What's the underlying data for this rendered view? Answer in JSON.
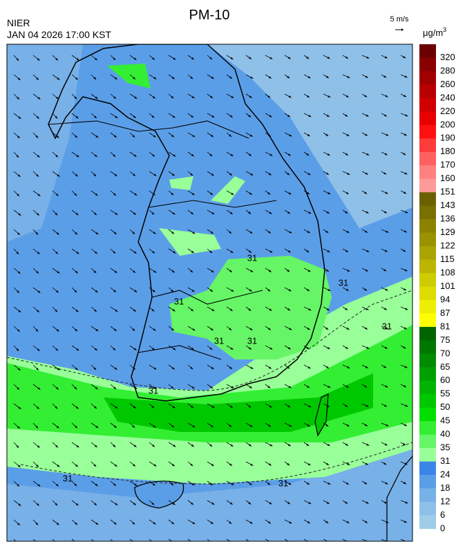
{
  "header": {
    "title": "PM-10",
    "source": "NIER",
    "datetime": "JAN 04 2026 17:00 KST",
    "wind_scale": "5 m/s"
  },
  "legend": {
    "unit": "μg/m",
    "unit_power": "3",
    "labels": [
      "320",
      "280",
      "260",
      "240",
      "220",
      "200",
      "190",
      "180",
      "170",
      "160",
      "151",
      "143",
      "136",
      "129",
      "122",
      "115",
      "108",
      "101",
      "94",
      "87",
      "81",
      "75",
      "70",
      "65",
      "60",
      "55",
      "50",
      "45",
      "40",
      "35",
      "31",
      "24",
      "18",
      "12",
      "6",
      "0"
    ],
    "colors": [
      "#6b0000",
      "#880000",
      "#a00000",
      "#b80000",
      "#d00000",
      "#e80000",
      "#ff1010",
      "#ff3a3a",
      "#ff6060",
      "#ff8080",
      "#ff9a9a",
      "#6b6000",
      "#7a7000",
      "#8a8200",
      "#9a9200",
      "#aaa400",
      "#bbb400",
      "#cccc00",
      "#dddd00",
      "#eeee00",
      "#ffff00",
      "#006400",
      "#007800",
      "#008c00",
      "#00a000",
      "#00b400",
      "#00c800",
      "#00e000",
      "#33ee33",
      "#66f566",
      "#99ff99",
      "#3a86e8",
      "#5b9ee8",
      "#78b0e8",
      "#8fc0e8",
      "#a0cce8"
    ]
  },
  "contour_labels": [
    "31",
    "31",
    "31",
    "31",
    "31",
    "31",
    "31",
    "31",
    "31"
  ]
}
